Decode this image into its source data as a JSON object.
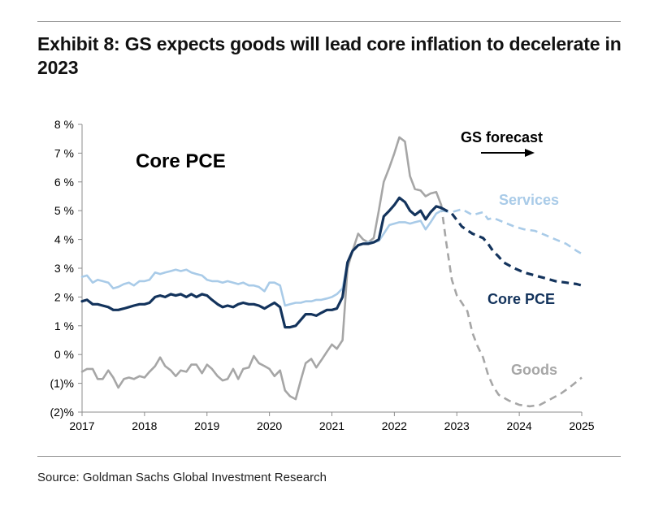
{
  "header": {
    "title": "Exhibit 8: GS expects goods will lead core inflation to decelerate in 2023"
  },
  "footer": {
    "source": "Source: Goldman Sachs Global Investment Research"
  },
  "colors": {
    "goods": "#a6a6a6",
    "core": "#13335c",
    "services": "#a9cbe8",
    "axis": "#8c8c8c"
  },
  "chart_data": {
    "type": "line",
    "title": "Core PCE",
    "xlabel": "",
    "ylabel": "",
    "xlim": [
      2017,
      2025
    ],
    "ylim": [
      -2,
      8
    ],
    "y_ticks": [
      8,
      7,
      6,
      5,
      4,
      3,
      2,
      1,
      0,
      -1,
      -2
    ],
    "y_tick_labels": [
      "8 %",
      "7 %",
      "6 %",
      "5 %",
      "4 %",
      "3 %",
      "2 %",
      "1 %",
      "0 %",
      "(1)%",
      "(2)%"
    ],
    "x_ticks": [
      2017,
      2018,
      2019,
      2020,
      2021,
      2022,
      2023,
      2024,
      2025
    ],
    "x_tick_labels": [
      "2017",
      "2018",
      "2019",
      "2020",
      "2021",
      "2022",
      "2023",
      "2024",
      "2025"
    ],
    "forecast_label": "GS forecast",
    "forecast_start": 2022.75,
    "series": [
      {
        "name": "Services",
        "label": "Services",
        "color": "#a9cbe8",
        "actual": [
          [
            2017.0,
            2.7
          ],
          [
            2017.08,
            2.75
          ],
          [
            2017.17,
            2.5
          ],
          [
            2017.25,
            2.6
          ],
          [
            2017.33,
            2.55
          ],
          [
            2017.42,
            2.5
          ],
          [
            2017.5,
            2.3
          ],
          [
            2017.58,
            2.35
          ],
          [
            2017.67,
            2.45
          ],
          [
            2017.75,
            2.5
          ],
          [
            2017.83,
            2.4
          ],
          [
            2017.92,
            2.55
          ],
          [
            2018.0,
            2.55
          ],
          [
            2018.08,
            2.6
          ],
          [
            2018.17,
            2.85
          ],
          [
            2018.25,
            2.8
          ],
          [
            2018.33,
            2.85
          ],
          [
            2018.42,
            2.9
          ],
          [
            2018.5,
            2.95
          ],
          [
            2018.58,
            2.9
          ],
          [
            2018.67,
            2.95
          ],
          [
            2018.75,
            2.85
          ],
          [
            2018.83,
            2.8
          ],
          [
            2018.92,
            2.75
          ],
          [
            2019.0,
            2.6
          ],
          [
            2019.08,
            2.55
          ],
          [
            2019.17,
            2.55
          ],
          [
            2019.25,
            2.5
          ],
          [
            2019.33,
            2.55
          ],
          [
            2019.42,
            2.5
          ],
          [
            2019.5,
            2.45
          ],
          [
            2019.58,
            2.5
          ],
          [
            2019.67,
            2.4
          ],
          [
            2019.75,
            2.4
          ],
          [
            2019.83,
            2.35
          ],
          [
            2019.92,
            2.2
          ],
          [
            2020.0,
            2.5
          ],
          [
            2020.08,
            2.5
          ],
          [
            2020.17,
            2.4
          ],
          [
            2020.25,
            1.7
          ],
          [
            2020.33,
            1.75
          ],
          [
            2020.42,
            1.8
          ],
          [
            2020.5,
            1.8
          ],
          [
            2020.58,
            1.85
          ],
          [
            2020.67,
            1.85
          ],
          [
            2020.75,
            1.9
          ],
          [
            2020.83,
            1.9
          ],
          [
            2020.92,
            1.95
          ],
          [
            2021.0,
            2.0
          ],
          [
            2021.08,
            2.1
          ],
          [
            2021.17,
            2.3
          ],
          [
            2021.25,
            3.2
          ],
          [
            2021.33,
            3.6
          ],
          [
            2021.42,
            3.8
          ],
          [
            2021.5,
            3.85
          ],
          [
            2021.58,
            3.9
          ],
          [
            2021.67,
            3.9
          ],
          [
            2021.75,
            3.95
          ],
          [
            2021.83,
            4.2
          ],
          [
            2021.92,
            4.5
          ],
          [
            2022.0,
            4.55
          ],
          [
            2022.08,
            4.6
          ],
          [
            2022.17,
            4.6
          ],
          [
            2022.25,
            4.55
          ],
          [
            2022.33,
            4.6
          ],
          [
            2022.42,
            4.65
          ],
          [
            2022.5,
            4.35
          ],
          [
            2022.58,
            4.6
          ],
          [
            2022.67,
            4.9
          ],
          [
            2022.75,
            5.0
          ]
        ],
        "forecast": [
          [
            2022.75,
            5.0
          ],
          [
            2022.92,
            4.95
          ],
          [
            2023.08,
            5.05
          ],
          [
            2023.25,
            4.85
          ],
          [
            2023.42,
            4.95
          ],
          [
            2023.5,
            4.7
          ],
          [
            2023.58,
            4.75
          ],
          [
            2023.75,
            4.6
          ],
          [
            2023.92,
            4.45
          ],
          [
            2024.08,
            4.35
          ],
          [
            2024.25,
            4.3
          ],
          [
            2024.42,
            4.15
          ],
          [
            2024.58,
            4.0
          ],
          [
            2024.75,
            3.85
          ],
          [
            2024.92,
            3.6
          ],
          [
            2025.0,
            3.5
          ]
        ]
      },
      {
        "name": "Core PCE",
        "label": "Core PCE",
        "color": "#13335c",
        "actual": [
          [
            2017.0,
            1.85
          ],
          [
            2017.08,
            1.9
          ],
          [
            2017.17,
            1.75
          ],
          [
            2017.25,
            1.75
          ],
          [
            2017.33,
            1.7
          ],
          [
            2017.42,
            1.65
          ],
          [
            2017.5,
            1.55
          ],
          [
            2017.58,
            1.55
          ],
          [
            2017.67,
            1.6
          ],
          [
            2017.75,
            1.65
          ],
          [
            2017.83,
            1.7
          ],
          [
            2017.92,
            1.75
          ],
          [
            2018.0,
            1.75
          ],
          [
            2018.08,
            1.8
          ],
          [
            2018.17,
            2.0
          ],
          [
            2018.25,
            2.05
          ],
          [
            2018.33,
            2.0
          ],
          [
            2018.42,
            2.1
          ],
          [
            2018.5,
            2.05
          ],
          [
            2018.58,
            2.1
          ],
          [
            2018.67,
            2.0
          ],
          [
            2018.75,
            2.1
          ],
          [
            2018.83,
            2.0
          ],
          [
            2018.92,
            2.1
          ],
          [
            2019.0,
            2.05
          ],
          [
            2019.08,
            1.9
          ],
          [
            2019.17,
            1.75
          ],
          [
            2019.25,
            1.65
          ],
          [
            2019.33,
            1.7
          ],
          [
            2019.42,
            1.65
          ],
          [
            2019.5,
            1.75
          ],
          [
            2019.58,
            1.8
          ],
          [
            2019.67,
            1.75
          ],
          [
            2019.75,
            1.75
          ],
          [
            2019.83,
            1.7
          ],
          [
            2019.92,
            1.6
          ],
          [
            2020.0,
            1.7
          ],
          [
            2020.08,
            1.8
          ],
          [
            2020.17,
            1.65
          ],
          [
            2020.25,
            0.95
          ],
          [
            2020.33,
            0.95
          ],
          [
            2020.42,
            1.0
          ],
          [
            2020.5,
            1.2
          ],
          [
            2020.58,
            1.4
          ],
          [
            2020.67,
            1.4
          ],
          [
            2020.75,
            1.35
          ],
          [
            2020.83,
            1.45
          ],
          [
            2020.92,
            1.55
          ],
          [
            2021.0,
            1.55
          ],
          [
            2021.08,
            1.6
          ],
          [
            2021.17,
            2.0
          ],
          [
            2021.25,
            3.2
          ],
          [
            2021.33,
            3.6
          ],
          [
            2021.42,
            3.8
          ],
          [
            2021.5,
            3.85
          ],
          [
            2021.58,
            3.85
          ],
          [
            2021.67,
            3.9
          ],
          [
            2021.75,
            4.0
          ],
          [
            2021.83,
            4.8
          ],
          [
            2021.92,
            5.0
          ],
          [
            2022.0,
            5.2
          ],
          [
            2022.08,
            5.45
          ],
          [
            2022.17,
            5.3
          ],
          [
            2022.25,
            5.0
          ],
          [
            2022.33,
            4.85
          ],
          [
            2022.42,
            5.0
          ],
          [
            2022.5,
            4.7
          ],
          [
            2022.58,
            4.95
          ],
          [
            2022.67,
            5.15
          ],
          [
            2022.75,
            5.1
          ]
        ],
        "forecast": [
          [
            2022.75,
            5.1
          ],
          [
            2022.92,
            4.9
          ],
          [
            2023.08,
            4.45
          ],
          [
            2023.25,
            4.2
          ],
          [
            2023.42,
            4.05
          ],
          [
            2023.5,
            3.85
          ],
          [
            2023.58,
            3.6
          ],
          [
            2023.67,
            3.4
          ],
          [
            2023.75,
            3.2
          ],
          [
            2023.92,
            3.0
          ],
          [
            2024.08,
            2.85
          ],
          [
            2024.25,
            2.75
          ],
          [
            2024.42,
            2.65
          ],
          [
            2024.58,
            2.55
          ],
          [
            2024.75,
            2.5
          ],
          [
            2024.92,
            2.45
          ],
          [
            2025.0,
            2.4
          ]
        ]
      },
      {
        "name": "Goods",
        "label": "Goods",
        "color": "#a6a6a6",
        "actual": [
          [
            2017.0,
            -0.6
          ],
          [
            2017.08,
            -0.5
          ],
          [
            2017.17,
            -0.5
          ],
          [
            2017.25,
            -0.85
          ],
          [
            2017.33,
            -0.85
          ],
          [
            2017.42,
            -0.55
          ],
          [
            2017.5,
            -0.8
          ],
          [
            2017.58,
            -1.15
          ],
          [
            2017.67,
            -0.85
          ],
          [
            2017.75,
            -0.8
          ],
          [
            2017.83,
            -0.85
          ],
          [
            2017.92,
            -0.75
          ],
          [
            2018.0,
            -0.8
          ],
          [
            2018.08,
            -0.6
          ],
          [
            2018.17,
            -0.4
          ],
          [
            2018.25,
            -0.1
          ],
          [
            2018.33,
            -0.4
          ],
          [
            2018.42,
            -0.55
          ],
          [
            2018.5,
            -0.75
          ],
          [
            2018.58,
            -0.55
          ],
          [
            2018.67,
            -0.6
          ],
          [
            2018.75,
            -0.35
          ],
          [
            2018.83,
            -0.35
          ],
          [
            2018.92,
            -0.65
          ],
          [
            2019.0,
            -0.35
          ],
          [
            2019.08,
            -0.5
          ],
          [
            2019.17,
            -0.75
          ],
          [
            2019.25,
            -0.9
          ],
          [
            2019.33,
            -0.85
          ],
          [
            2019.42,
            -0.5
          ],
          [
            2019.5,
            -0.85
          ],
          [
            2019.58,
            -0.5
          ],
          [
            2019.67,
            -0.45
          ],
          [
            2019.75,
            -0.05
          ],
          [
            2019.83,
            -0.3
          ],
          [
            2019.92,
            -0.4
          ],
          [
            2020.0,
            -0.5
          ],
          [
            2020.08,
            -0.75
          ],
          [
            2020.17,
            -0.55
          ],
          [
            2020.25,
            -1.25
          ],
          [
            2020.33,
            -1.45
          ],
          [
            2020.42,
            -1.55
          ],
          [
            2020.5,
            -0.9
          ],
          [
            2020.58,
            -0.3
          ],
          [
            2020.67,
            -0.15
          ],
          [
            2020.75,
            -0.45
          ],
          [
            2020.83,
            -0.2
          ],
          [
            2020.92,
            0.1
          ],
          [
            2021.0,
            0.35
          ],
          [
            2021.08,
            0.2
          ],
          [
            2021.17,
            0.5
          ],
          [
            2021.25,
            3.0
          ],
          [
            2021.33,
            3.6
          ],
          [
            2021.42,
            4.2
          ],
          [
            2021.5,
            4.0
          ],
          [
            2021.58,
            3.9
          ],
          [
            2021.67,
            4.05
          ],
          [
            2021.75,
            5.0
          ],
          [
            2021.83,
            6.0
          ],
          [
            2021.92,
            6.5
          ],
          [
            2022.0,
            7.0
          ],
          [
            2022.08,
            7.55
          ],
          [
            2022.17,
            7.4
          ],
          [
            2022.25,
            6.2
          ],
          [
            2022.33,
            5.75
          ],
          [
            2022.42,
            5.7
          ],
          [
            2022.5,
            5.5
          ],
          [
            2022.58,
            5.6
          ],
          [
            2022.67,
            5.65
          ],
          [
            2022.75,
            5.2
          ]
        ],
        "forecast": [
          [
            2022.75,
            5.2
          ],
          [
            2022.83,
            3.9
          ],
          [
            2022.92,
            2.6
          ],
          [
            2023.0,
            2.05
          ],
          [
            2023.08,
            1.8
          ],
          [
            2023.17,
            1.5
          ],
          [
            2023.25,
            0.75
          ],
          [
            2023.33,
            0.3
          ],
          [
            2023.42,
            -0.1
          ],
          [
            2023.5,
            -0.7
          ],
          [
            2023.58,
            -1.1
          ],
          [
            2023.67,
            -1.4
          ],
          [
            2023.83,
            -1.6
          ],
          [
            2024.0,
            -1.75
          ],
          [
            2024.17,
            -1.8
          ],
          [
            2024.33,
            -1.75
          ],
          [
            2024.5,
            -1.55
          ],
          [
            2024.67,
            -1.35
          ],
          [
            2024.83,
            -1.1
          ],
          [
            2025.0,
            -0.8
          ]
        ]
      }
    ]
  }
}
